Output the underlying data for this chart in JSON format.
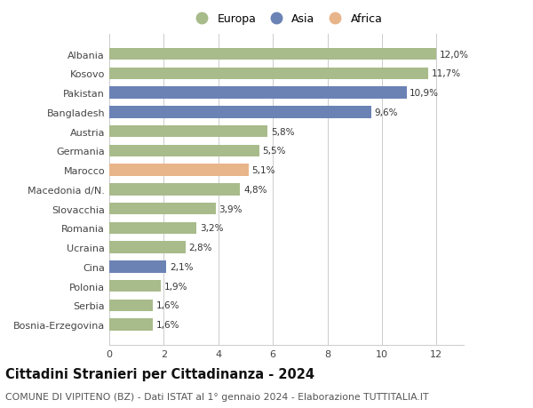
{
  "categories": [
    "Bosnia-Erzegovina",
    "Serbia",
    "Polonia",
    "Cina",
    "Ucraina",
    "Romania",
    "Slovacchia",
    "Macedonia d/N.",
    "Marocco",
    "Germania",
    "Austria",
    "Bangladesh",
    "Pakistan",
    "Kosovo",
    "Albania"
  ],
  "values": [
    1.6,
    1.6,
    1.9,
    2.1,
    2.8,
    3.2,
    3.9,
    4.8,
    5.1,
    5.5,
    5.8,
    9.6,
    10.9,
    11.7,
    12.0
  ],
  "labels": [
    "1,6%",
    "1,6%",
    "1,9%",
    "2,1%",
    "2,8%",
    "3,2%",
    "3,9%",
    "4,8%",
    "5,1%",
    "5,5%",
    "5,8%",
    "9,6%",
    "10,9%",
    "11,7%",
    "12,0%"
  ],
  "continents": [
    "Europa",
    "Europa",
    "Europa",
    "Asia",
    "Europa",
    "Europa",
    "Europa",
    "Europa",
    "Africa",
    "Europa",
    "Europa",
    "Asia",
    "Asia",
    "Europa",
    "Europa"
  ],
  "continent_colors": {
    "Europa": "#a8bb8a",
    "Asia": "#6b82b5",
    "Africa": "#e8b48a"
  },
  "legend_entries": [
    "Europa",
    "Asia",
    "Africa"
  ],
  "legend_colors": [
    "#a8bb8a",
    "#6b82b5",
    "#e8b48a"
  ],
  "title": "Cittadini Stranieri per Cittadinanza - 2024",
  "subtitle": "COMUNE DI VIPITENO (BZ) - Dati ISTAT al 1° gennaio 2024 - Elaborazione TUTTITALIA.IT",
  "xlim": [
    0,
    13
  ],
  "xticks": [
    0,
    2,
    4,
    6,
    8,
    10,
    12
  ],
  "background_color": "#ffffff",
  "bar_height": 0.62,
  "title_fontsize": 10.5,
  "subtitle_fontsize": 7.8,
  "label_fontsize": 7.5,
  "tick_fontsize": 8.0,
  "legend_fontsize": 9.0
}
